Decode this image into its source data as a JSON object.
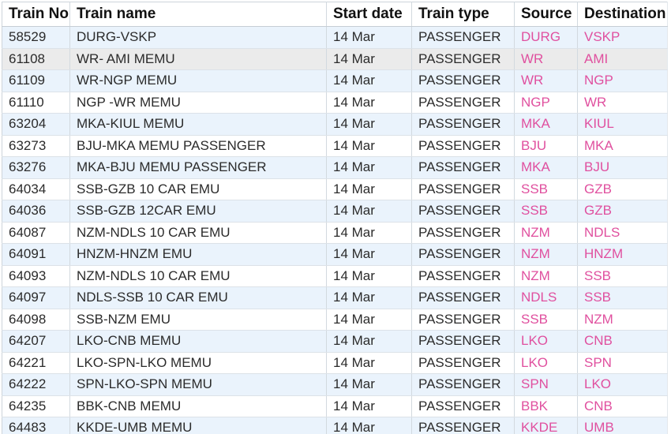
{
  "colors": {
    "row_alt": "#eaf3fc",
    "row_hover": "#ebebeb",
    "link_pink": "#e0509f"
  },
  "table": {
    "columns": [
      {
        "key": "train_no",
        "label": "Train No"
      },
      {
        "key": "train_name",
        "label": "Train name"
      },
      {
        "key": "start_date",
        "label": "Start date"
      },
      {
        "key": "train_type",
        "label": "Train type"
      },
      {
        "key": "source",
        "label": "Source"
      },
      {
        "key": "destination",
        "label": "Destination"
      }
    ],
    "rows": [
      {
        "train_no": "58529",
        "train_name": "DURG-VSKP",
        "start_date": "14 Mar",
        "train_type": "PASSENGER",
        "source": "DURG",
        "destination": "VSKP",
        "state": "normal"
      },
      {
        "train_no": "61108",
        "train_name": "WR- AMI MEMU",
        "start_date": "14 Mar",
        "train_type": "PASSENGER",
        "source": "WR",
        "destination": "AMI",
        "state": "hovered"
      },
      {
        "train_no": "61109",
        "train_name": "WR-NGP MEMU",
        "start_date": "14 Mar",
        "train_type": "PASSENGER",
        "source": "WR",
        "destination": "NGP",
        "state": "normal"
      },
      {
        "train_no": "61110",
        "train_name": "NGP -WR MEMU",
        "start_date": "14 Mar",
        "train_type": "PASSENGER",
        "source": "NGP",
        "destination": "WR",
        "state": "normal"
      },
      {
        "train_no": "63204",
        "train_name": "MKA-KIUL MEMU",
        "start_date": "14 Mar",
        "train_type": "PASSENGER",
        "source": "MKA",
        "destination": "KIUL",
        "state": "normal"
      },
      {
        "train_no": "63273",
        "train_name": "BJU-MKA MEMU PASSENGER",
        "start_date": "14 Mar",
        "train_type": "PASSENGER",
        "source": "BJU",
        "destination": "MKA",
        "state": "normal"
      },
      {
        "train_no": "63276",
        "train_name": "MKA-BJU MEMU PASSENGER",
        "start_date": "14 Mar",
        "train_type": "PASSENGER",
        "source": "MKA",
        "destination": "BJU",
        "state": "normal"
      },
      {
        "train_no": "64034",
        "train_name": "SSB-GZB 10 CAR EMU",
        "start_date": "14 Mar",
        "train_type": "PASSENGER",
        "source": "SSB",
        "destination": "GZB",
        "state": "normal"
      },
      {
        "train_no": "64036",
        "train_name": "SSB-GZB 12CAR EMU",
        "start_date": "14 Mar",
        "train_type": "PASSENGER",
        "source": "SSB",
        "destination": "GZB",
        "state": "normal"
      },
      {
        "train_no": "64087",
        "train_name": "NZM-NDLS 10 CAR EMU",
        "start_date": "14 Mar",
        "train_type": "PASSENGER",
        "source": "NZM",
        "destination": "NDLS",
        "state": "normal"
      },
      {
        "train_no": "64091",
        "train_name": "HNZM-HNZM EMU",
        "start_date": "14 Mar",
        "train_type": "PASSENGER",
        "source": "NZM",
        "destination": "HNZM",
        "state": "normal"
      },
      {
        "train_no": "64093",
        "train_name": "NZM-NDLS 10 CAR EMU",
        "start_date": "14 Mar",
        "train_type": "PASSENGER",
        "source": "NZM",
        "destination": "SSB",
        "state": "normal"
      },
      {
        "train_no": "64097",
        "train_name": "NDLS-SSB 10 CAR EMU",
        "start_date": "14 Mar",
        "train_type": "PASSENGER",
        "source": "NDLS",
        "destination": "SSB",
        "state": "normal"
      },
      {
        "train_no": "64098",
        "train_name": "SSB-NZM EMU",
        "start_date": "14 Mar",
        "train_type": "PASSENGER",
        "source": "SSB",
        "destination": "NZM",
        "state": "normal"
      },
      {
        "train_no": "64207",
        "train_name": "LKO-CNB MEMU",
        "start_date": "14 Mar",
        "train_type": "PASSENGER",
        "source": "LKO",
        "destination": "CNB",
        "state": "normal"
      },
      {
        "train_no": "64221",
        "train_name": "LKO-SPN-LKO MEMU",
        "start_date": "14 Mar",
        "train_type": "PASSENGER",
        "source": "LKO",
        "destination": "SPN",
        "state": "normal"
      },
      {
        "train_no": "64222",
        "train_name": "SPN-LKO-SPN MEMU",
        "start_date": "14 Mar",
        "train_type": "PASSENGER",
        "source": "SPN",
        "destination": "LKO",
        "state": "normal"
      },
      {
        "train_no": "64235",
        "train_name": "BBK-CNB MEMU",
        "start_date": "14 Mar",
        "train_type": "PASSENGER",
        "source": "BBK",
        "destination": "CNB",
        "state": "normal"
      },
      {
        "train_no": "64483",
        "train_name": "KKDE-UMB MEMU",
        "start_date": "14 Mar",
        "train_type": "PASSENGER",
        "source": "KKDE",
        "destination": "UMB",
        "state": "normal"
      }
    ]
  }
}
